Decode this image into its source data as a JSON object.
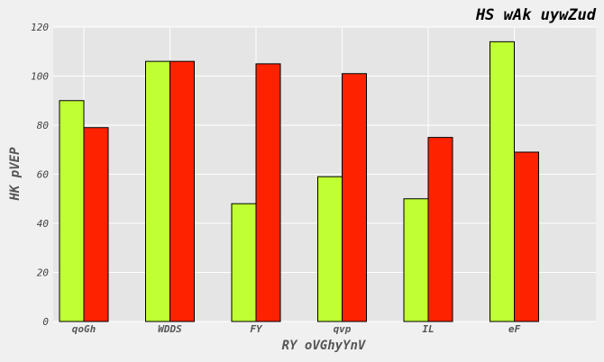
{
  "chart_data": {
    "type": "bar",
    "title": "HS wAk  uywZud",
    "xlabel": "RY  oVGhyYnV",
    "ylabel": "HK pVEP",
    "categories": [
      "qoGh",
      "WDDS",
      "FY",
      "qvp",
      "IL",
      "eF"
    ],
    "series": [
      {
        "color": "#c0ff33",
        "values": [
          90,
          106,
          48,
          59,
          50,
          114
        ]
      },
      {
        "color": "#ff2200",
        "values": [
          79,
          106,
          105,
          101,
          75,
          69
        ]
      }
    ],
    "ylim": [
      0,
      120
    ],
    "yticks": [
      0,
      20,
      40,
      60,
      80,
      100,
      120
    ],
    "grid": true,
    "background_color": "#e5e5e5"
  }
}
